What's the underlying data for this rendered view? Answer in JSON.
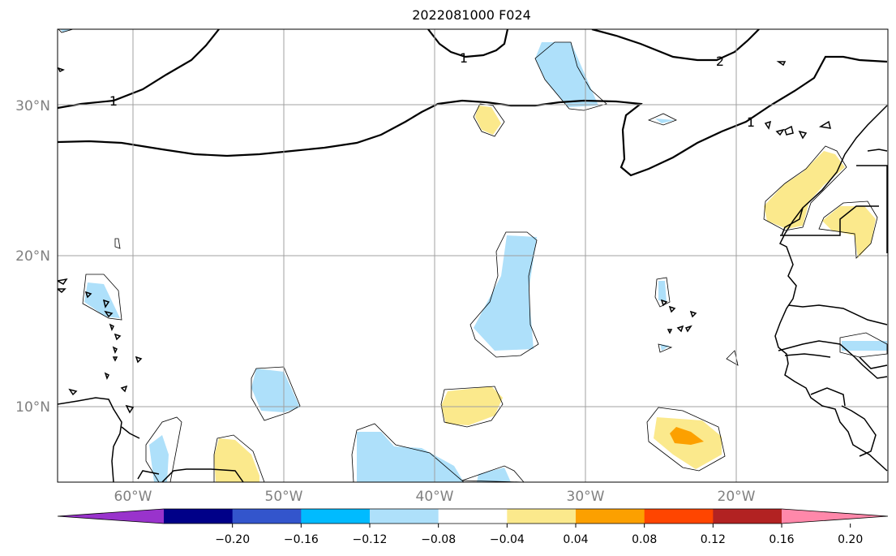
{
  "title": "2022081000 F024",
  "map": {
    "lat_labels": [
      "30°N",
      "20°N",
      "10°N"
    ],
    "lon_labels": [
      "60°W",
      "50°W",
      "40°W",
      "30°W",
      "20°W"
    ],
    "contour_labels": [
      "1",
      "1",
      "2",
      "1"
    ],
    "colors": {
      "light_blue": "#aee0fa",
      "light_yellow": "#fbe98c",
      "orange": "#fca000",
      "grid": "#a0a0a0",
      "coast": "#000000"
    }
  },
  "colorbar": {
    "colors": [
      "#9933cc",
      "#000088",
      "#3355cc",
      "#00bbff",
      "#aee0fa",
      "#ffffff",
      "#fbe98c",
      "#fca000",
      "#ff4500",
      "#b22222",
      "#ff88aa"
    ],
    "tick_labels": [
      "−0.20",
      "−0.16",
      "−0.12",
      "−0.08",
      "−0.04",
      "0.04",
      "0.08",
      "0.12",
      "0.16",
      "0.20"
    ]
  }
}
